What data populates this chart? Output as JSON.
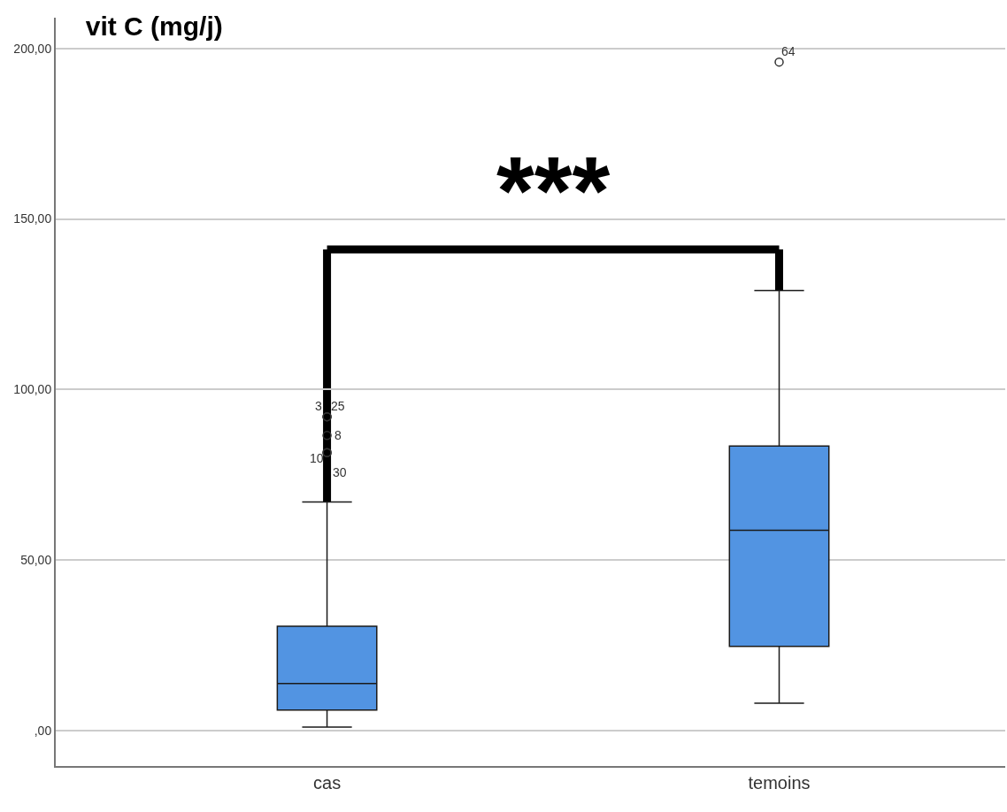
{
  "chart_data": {
    "type": "box",
    "title": "vit C (mg/j)",
    "categories": [
      "cas",
      "temoins"
    ],
    "boxes": [
      {
        "low": 1,
        "q1": 6,
        "median": 13.8,
        "q3": 30.6,
        "high": 67,
        "outliers": [
          92,
          92,
          86.5,
          81.5,
          81.5
        ]
      },
      {
        "low": 8,
        "q1": 24.7,
        "median": 58.7,
        "q3": 83.4,
        "high": 129,
        "outliers": [
          196
        ]
      }
    ],
    "color": "#5294e2",
    "ylim": [
      -10.4,
      209
    ],
    "yticks": [
      {
        "value": 0,
        "label": ",00"
      },
      {
        "value": 50,
        "label": "50,00"
      },
      {
        "value": 100,
        "label": "100,00"
      },
      {
        "value": 150,
        "label": "150,00"
      },
      {
        "value": 200,
        "label": "200,00"
      }
    ],
    "grid": "y",
    "marker": "circle",
    "annotations": [
      "3",
      "25",
      "8",
      "10",
      "30",
      "64",
      "***"
    ]
  }
}
